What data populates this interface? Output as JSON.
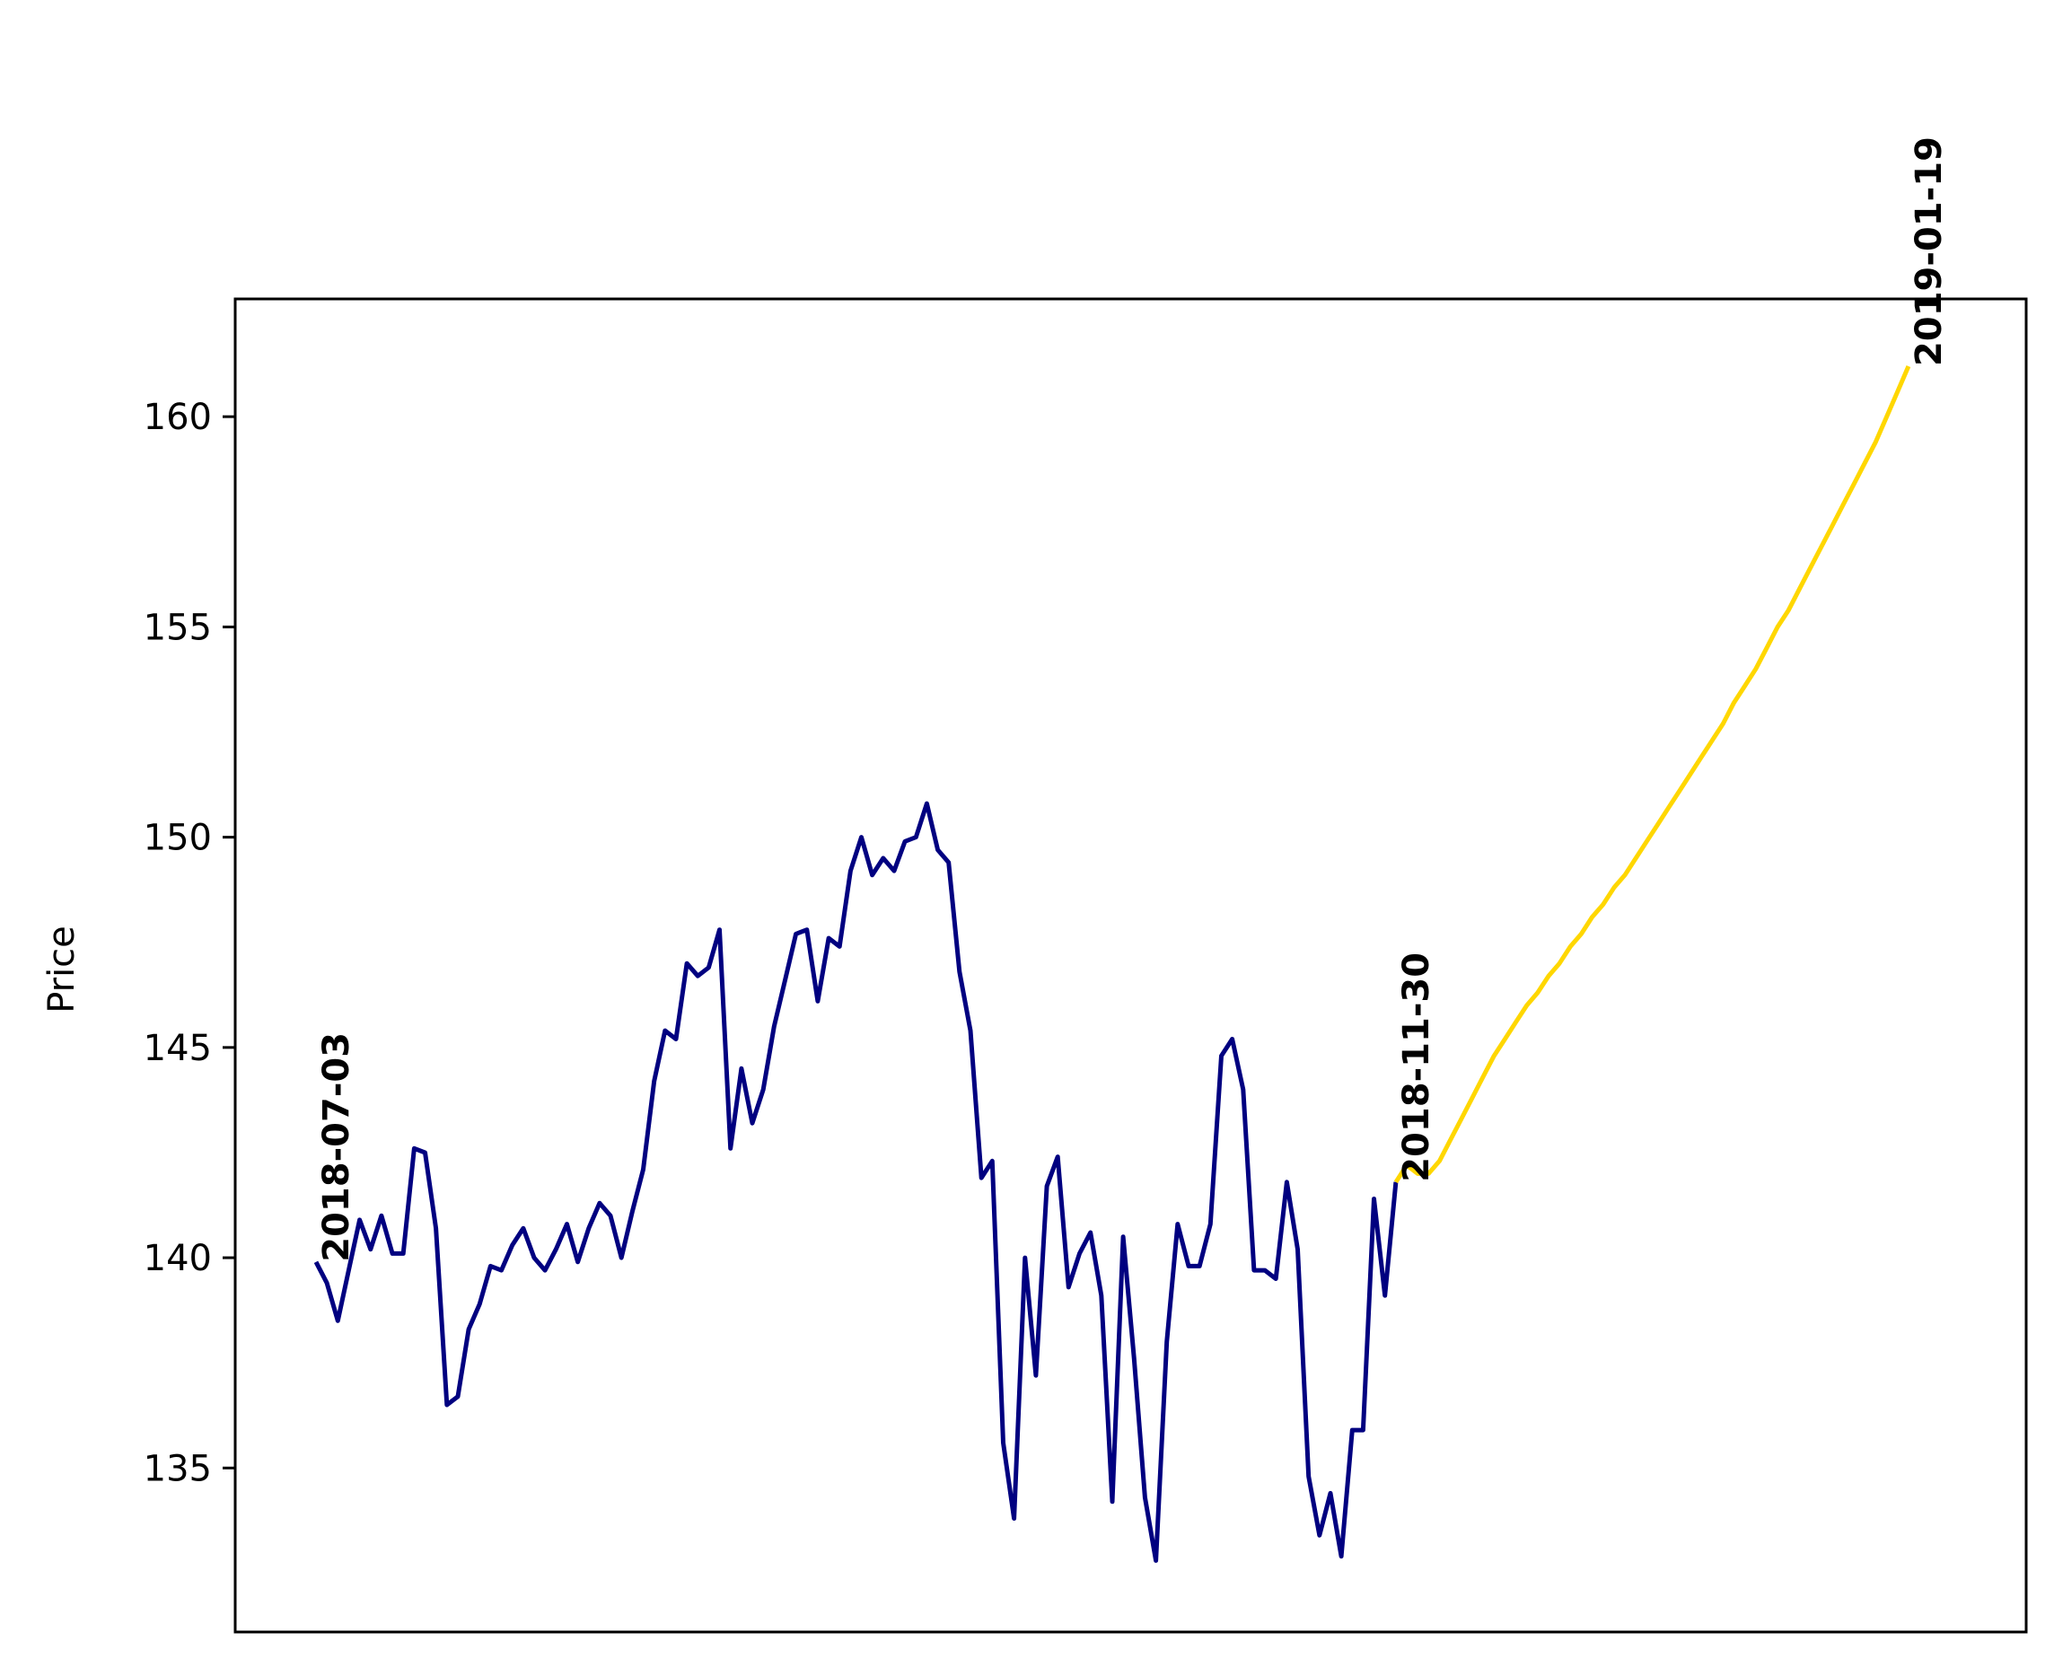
{
  "chart_data": {
    "type": "line",
    "title": "",
    "xlabel": "",
    "ylabel": "Price",
    "ylim": [
      131.1,
      162.8
    ],
    "y_ticks": [
      135,
      140,
      145,
      150,
      155,
      160
    ],
    "x_ticks_visible": false,
    "grid": false,
    "legend": "none",
    "series": [
      {
        "kind": "history",
        "color": "#000080",
        "values": [
          139.9,
          139.4,
          138.5,
          139.7,
          140.9,
          140.2,
          141.0,
          140.1,
          140.1,
          142.6,
          142.5,
          140.7,
          136.5,
          136.7,
          138.3,
          138.9,
          139.8,
          139.7,
          140.3,
          140.7,
          140.0,
          139.7,
          140.2,
          140.8,
          139.9,
          140.7,
          141.3,
          141.0,
          140.0,
          141.1,
          142.1,
          144.2,
          145.4,
          145.2,
          147.0,
          146.7,
          146.9,
          147.8,
          142.6,
          144.5,
          143.2,
          144.0,
          145.5,
          146.6,
          147.7,
          147.8,
          146.1,
          147.6,
          147.4,
          149.2,
          150.0,
          149.1,
          149.5,
          149.2,
          149.9,
          150.0,
          150.8,
          149.7,
          149.4,
          146.8,
          145.4,
          141.9,
          142.3,
          135.6,
          133.8,
          140.0,
          137.2,
          141.7,
          142.4,
          139.3,
          140.1,
          140.6,
          139.1,
          134.2,
          140.5,
          137.6,
          134.3,
          132.8,
          138.0,
          140.8,
          139.8,
          139.8,
          140.8,
          144.8,
          145.2,
          144.0,
          139.7,
          139.7,
          139.5,
          141.8,
          140.2,
          134.8,
          133.4,
          134.4,
          132.9,
          135.9,
          135.9,
          141.4,
          139.1,
          141.8
        ],
        "end_label": "2018-11-30"
      },
      {
        "kind": "forecast",
        "color": "#FFD700",
        "values": [
          141.8,
          142.2,
          142.0,
          142.0,
          142.3,
          142.8,
          143.3,
          143.8,
          144.3,
          144.8,
          145.2,
          145.6,
          146.0,
          146.3,
          146.7,
          147.0,
          147.4,
          147.7,
          148.1,
          148.4,
          148.8,
          149.1,
          149.5,
          149.9,
          150.3,
          150.7,
          151.1,
          151.5,
          151.9,
          152.3,
          152.7,
          153.2,
          153.6,
          154.0,
          154.5,
          155.0,
          155.4,
          155.9,
          156.4,
          156.9,
          157.4,
          157.9,
          158.4,
          158.9,
          159.4,
          160.0,
          160.6,
          161.2
        ],
        "end_label": "2019-01-19"
      }
    ],
    "annotations": [
      {
        "text": "2018-07-03",
        "series": 0,
        "point": "start"
      },
      {
        "text": "2018-11-30",
        "series": 1,
        "point": "start"
      },
      {
        "text": "2019-01-19",
        "series": 1,
        "point": "end"
      }
    ]
  }
}
